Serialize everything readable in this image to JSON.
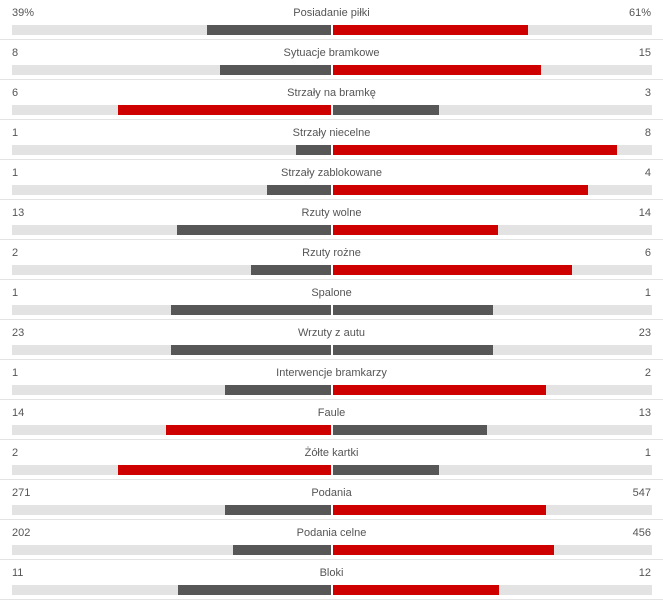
{
  "colors": {
    "better": "#cf0000",
    "worse": "#575757",
    "track": "#e3e3e3"
  },
  "stats": [
    {
      "name": "Posiadanie piłki",
      "home": "39%",
      "away": "61%",
      "home_value": 39,
      "away_value": 61
    },
    {
      "name": "Sytuacje bramkowe",
      "home": "8",
      "away": "15",
      "home_value": 8,
      "away_value": 15
    },
    {
      "name": "Strzały na bramkę",
      "home": "6",
      "away": "3",
      "home_value": 6,
      "away_value": 3
    },
    {
      "name": "Strzały niecelne",
      "home": "1",
      "away": "8",
      "home_value": 1,
      "away_value": 8
    },
    {
      "name": "Strzały zablokowane",
      "home": "1",
      "away": "4",
      "home_value": 1,
      "away_value": 4
    },
    {
      "name": "Rzuty wolne",
      "home": "13",
      "away": "14",
      "home_value": 13,
      "away_value": 14
    },
    {
      "name": "Rzuty rożne",
      "home": "2",
      "away": "6",
      "home_value": 2,
      "away_value": 6
    },
    {
      "name": "Spalone",
      "home": "1",
      "away": "1",
      "home_value": 1,
      "away_value": 1
    },
    {
      "name": "Wrzuty z autu",
      "home": "23",
      "away": "23",
      "home_value": 23,
      "away_value": 23
    },
    {
      "name": "Interwencje bramkarzy",
      "home": "1",
      "away": "2",
      "home_value": 1,
      "away_value": 2
    },
    {
      "name": "Faule",
      "home": "14",
      "away": "13",
      "home_value": 14,
      "away_value": 13
    },
    {
      "name": "Żółte kartki",
      "home": "2",
      "away": "1",
      "home_value": 2,
      "away_value": 1
    },
    {
      "name": "Podania",
      "home": "271",
      "away": "547",
      "home_value": 271,
      "away_value": 547
    },
    {
      "name": "Podania celne",
      "home": "202",
      "away": "456",
      "home_value": 202,
      "away_value": 456
    },
    {
      "name": "Bloki",
      "home": "11",
      "away": "12",
      "home_value": 11,
      "away_value": 12
    }
  ]
}
